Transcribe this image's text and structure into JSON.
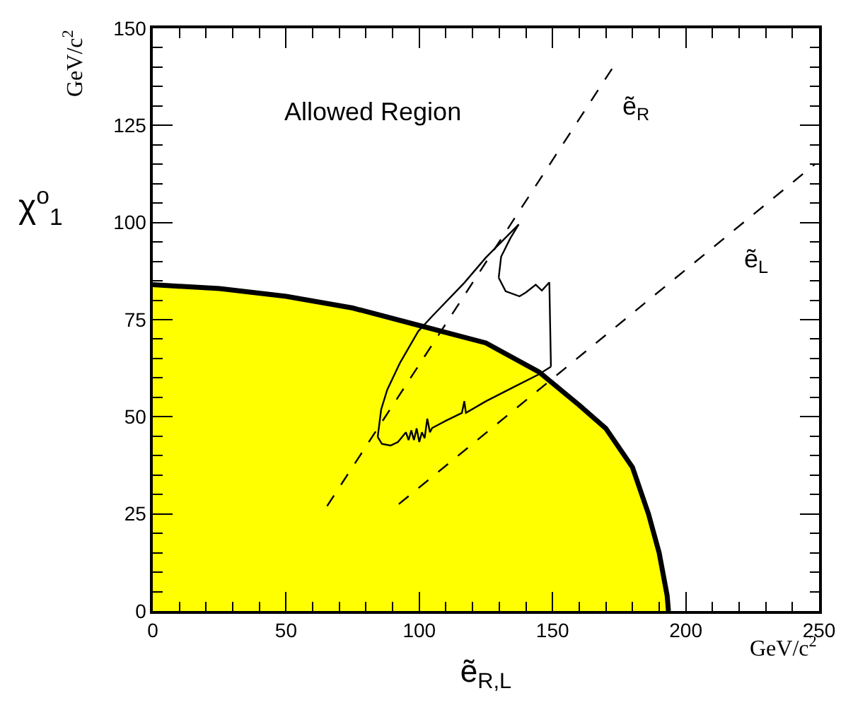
{
  "chart_data": {
    "type": "line",
    "xlabel": "ẽ$_{R,L}$",
    "ylabel": "χ$^{o}$$_{1}$",
    "xlim": [
      0,
      250
    ],
    "xticks": [
      0,
      50,
      100,
      150,
      200,
      250
    ],
    "ylim": [
      0,
      150
    ],
    "yticks": [
      0,
      25,
      50,
      75,
      100,
      125,
      150
    ],
    "marker": "none",
    "series": [
      {
        "type": "area",
        "color": "#ffff00",
        "x": [
          0,
          25,
          50,
          75,
          100,
          125,
          145,
          160,
          170,
          180,
          186,
          190,
          193,
          193.5
        ],
        "values": [
          84,
          83,
          81,
          78,
          73.5,
          69,
          61.5,
          53,
          47,
          37,
          25,
          15,
          4,
          0
        ]
      },
      {
        "color": "#000000",
        "line_style": "dashed",
        "x": [
          65.4,
          172.7
        ],
        "values": [
          27,
          140
        ]
      },
      {
        "color": "#000000",
        "line_style": "dashed",
        "x": [
          92.3,
          248.4
        ],
        "values": [
          27.5,
          115
        ]
      },
      {
        "color": "#000000",
        "line_style": "solid",
        "x": [
          129.8,
          132.4,
          137.6,
          140,
          143.7,
          146,
          148.8,
          149.4
        ],
        "values": [
          85.8,
          82.3,
          81,
          82,
          84,
          82.5,
          84.6,
          62.9
        ]
      },
      {
        "color": "#000000",
        "line_style": "solid",
        "x": [
          129.8,
          130.7,
          134.2,
          137.3
        ],
        "values": [
          85.8,
          91.2,
          96,
          99.5
        ]
      },
      {
        "color": "#000000",
        "line_style": "solid",
        "x": [
          84.4,
          85.7,
          88,
          92.7,
          99.6,
          105,
          116.9,
          125,
          137.3
        ],
        "values": [
          44.8,
          51.9,
          57,
          63.8,
          72,
          76,
          84.5,
          91,
          99.5
        ]
      },
      {
        "color": "#000000",
        "line_style": "solid",
        "x": [
          84.4,
          86,
          89.2,
          92,
          95,
          96,
          97,
          98,
          99,
          100,
          101,
          102,
          103,
          104,
          104.8,
          110,
          116,
          116.9,
          117.5,
          125,
          135,
          144.5,
          149.4
        ],
        "values": [
          44.8,
          43,
          42.6,
          43.5,
          46,
          44,
          46.5,
          44,
          47,
          43.5,
          46,
          44.5,
          49.5,
          46,
          47.1,
          49,
          51,
          54,
          51,
          54,
          57.5,
          60.8,
          62.9
        ]
      }
    ],
    "annotations": [
      "Allowed Region",
      "ẽ$_{R}$",
      "ẽ$_{L}$",
      "GeV/c$^{2}$",
      "GeV/c$^{2}$"
    ]
  }
}
